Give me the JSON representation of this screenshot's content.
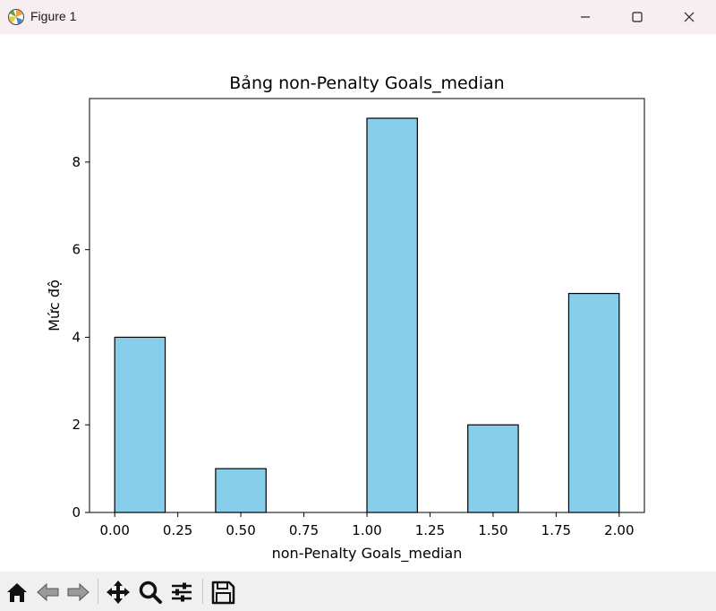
{
  "window": {
    "title": "Figure 1",
    "app_icon": "matplotlib-icon",
    "controls": [
      "minimize-icon",
      "maximize-icon",
      "close-icon"
    ]
  },
  "toolbar": {
    "buttons": [
      "home-icon",
      "back-arrow-icon",
      "forward-arrow-icon",
      "pan-move-icon",
      "zoom-magnifier-icon",
      "configure-subplots-icon",
      "save-floppy-icon"
    ]
  },
  "chart_data": {
    "type": "bar",
    "title": "Bảng non-Penalty Goals_median",
    "xlabel": "non-Penalty Goals_median",
    "ylabel": "Mức độ",
    "bins": [
      {
        "x0": 0.0,
        "x1": 0.2,
        "value": 4
      },
      {
        "x0": 0.2,
        "x1": 0.4,
        "value": 0
      },
      {
        "x0": 0.4,
        "x1": 0.6,
        "value": 1
      },
      {
        "x0": 0.6,
        "x1": 0.8,
        "value": 0
      },
      {
        "x0": 0.8,
        "x1": 1.0,
        "value": 0
      },
      {
        "x0": 1.0,
        "x1": 1.2,
        "value": 9
      },
      {
        "x0": 1.2,
        "x1": 1.4,
        "value": 0
      },
      {
        "x0": 1.4,
        "x1": 1.6,
        "value": 2
      },
      {
        "x0": 1.6,
        "x1": 1.8,
        "value": 0
      },
      {
        "x0": 1.8,
        "x1": 2.0,
        "value": 5
      }
    ],
    "xticks": [
      "0.00",
      "0.25",
      "0.50",
      "0.75",
      "1.00",
      "1.25",
      "1.50",
      "1.75",
      "2.00"
    ],
    "yticks": [
      "0",
      "2",
      "4",
      "6",
      "8"
    ],
    "xlim": [
      -0.1,
      2.1
    ],
    "ylim": [
      0,
      9.45
    ],
    "grid": false,
    "bar_color": "#87ceeb",
    "edge_color": "#000000"
  }
}
